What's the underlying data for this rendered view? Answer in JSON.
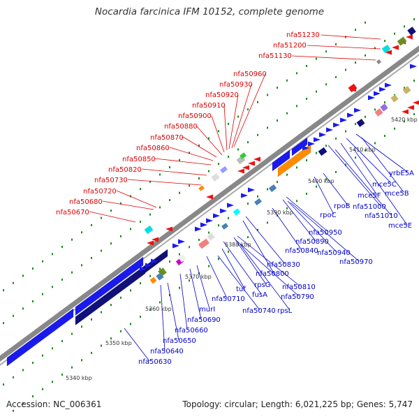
{
  "title": "Nocardia farcinica IFM 10152, complete genome",
  "accession": "Accession: NC_006361",
  "summary": "Topology: circular; Length: 6,021,225 bp; Genes: 5,747",
  "colors": {
    "backbone": "#888888",
    "forward": "#1a1aee",
    "reverse": "#ee1111",
    "label_upper": "#dd0000",
    "label_lower": "#0000cc",
    "ticks": "#1a8a1a"
  },
  "scale_labels": [
    "5340 kbp",
    "5350 kbp",
    "5360 kbp",
    "5370 kbp",
    "5380 kbp",
    "5390 kbp",
    "5400 kbp",
    "5410 kbp",
    "5420 kbp"
  ],
  "upper_labels": [
    "nfa51230",
    "nfa51200",
    "nfa51130",
    "nfa50960",
    "nfa50930",
    "nfa50920",
    "nfa50910",
    "nfa50900",
    "nfa50880",
    "nfa50870",
    "nfa50860",
    "nfa50850",
    "nfa50820",
    "nfa50730",
    "nfa50720",
    "nfa50680",
    "nfa50670"
  ],
  "lower_labels": [
    "yrbE5A",
    "mce5C",
    "mce5B",
    "mce5F",
    "nfa51000",
    "nfa51010",
    "mce5E",
    "rpoB",
    "rpoC",
    "nfa50950",
    "nfa50890",
    "nfa50940",
    "nfa50970",
    "nfa50840",
    "nfa50830",
    "nfa50800",
    "rpsG",
    "nfa50810",
    "tuf",
    "fusA",
    "nfa50790",
    "nfa50710",
    "rpsL",
    "nfa50740",
    "murI",
    "nfa50690",
    "nfa50660",
    "nfa50650",
    "nfa50640",
    "nfa50630"
  ]
}
